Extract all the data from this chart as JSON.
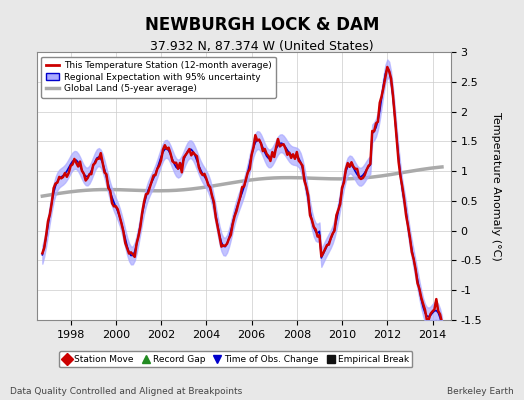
{
  "title": "NEWBURGH LOCK & DAM",
  "subtitle": "37.932 N, 87.374 W (United States)",
  "ylabel": "Temperature Anomaly (°C)",
  "footer_left": "Data Quality Controlled and Aligned at Breakpoints",
  "footer_right": "Berkeley Earth",
  "xlim": [
    1996.5,
    2014.8
  ],
  "ylim": [
    -1.5,
    3.0
  ],
  "yticks": [
    -1.5,
    -1.0,
    -0.5,
    0,
    0.5,
    1.0,
    1.5,
    2.0,
    2.5,
    3.0
  ],
  "xticks": [
    1998,
    2000,
    2002,
    2004,
    2006,
    2008,
    2010,
    2012,
    2014
  ],
  "bg_color": "#e8e8e8",
  "plot_bg_color": "#ffffff",
  "regional_line_color": "#0000cc",
  "regional_fill_color": "#aaaaff",
  "station_line_color": "#cc0000",
  "global_line_color": "#aaaaaa",
  "legend_items": [
    {
      "label": "This Temperature Station (12-month average)",
      "color": "#cc0000",
      "lw": 2.0
    },
    {
      "label": "Regional Expectation with 95% uncertainty",
      "color": "#0000cc",
      "lw": 1.5
    },
    {
      "label": "Global Land (5-year average)",
      "color": "#aaaaaa",
      "lw": 2.5
    }
  ],
  "bottom_legend": [
    {
      "label": "Station Move",
      "color": "#cc0000",
      "marker": "D"
    },
    {
      "label": "Record Gap",
      "color": "#228B22",
      "marker": "^"
    },
    {
      "label": "Time of Obs. Change",
      "color": "#0000cc",
      "marker": "v"
    },
    {
      "label": "Empirical Break",
      "color": "#111111",
      "marker": "s"
    }
  ]
}
